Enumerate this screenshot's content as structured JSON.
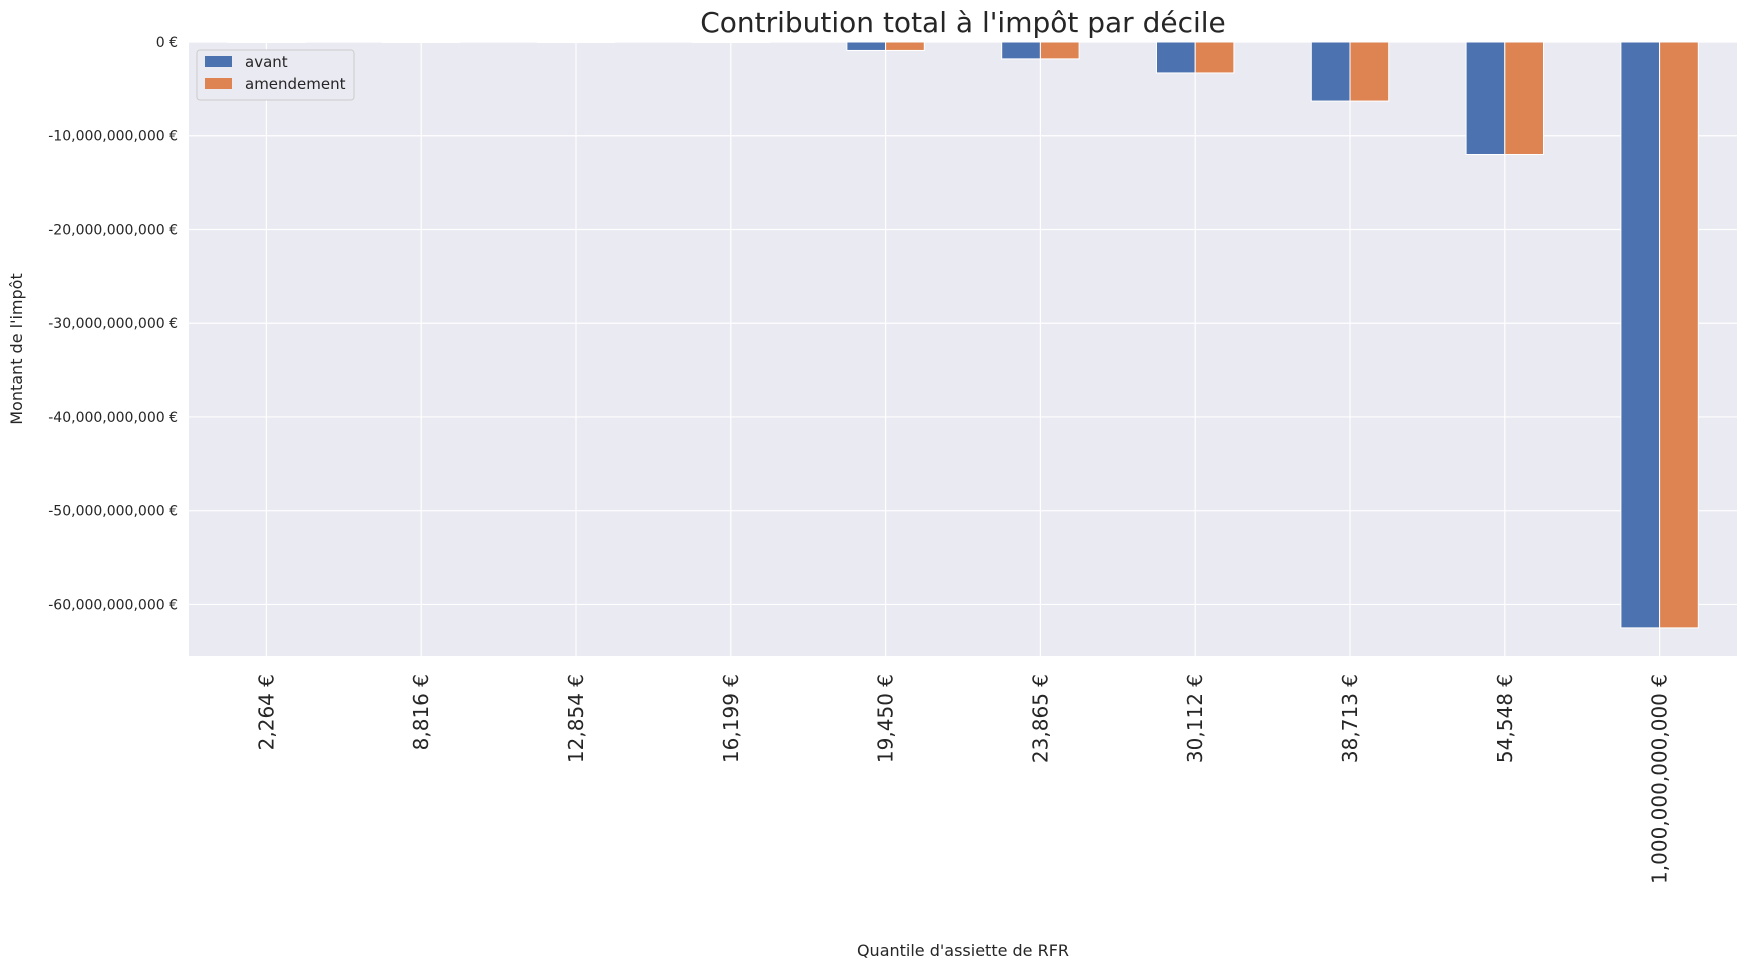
{
  "chart_data": {
    "type": "bar",
    "title": "Contribution total à l'impôt par décile",
    "xlabel": "Quantile d'assiette de RFR",
    "ylabel": "Montant de l'impôt",
    "categories": [
      "2,264 €",
      "8,816 €",
      "12,854 €",
      "16,199 €",
      "19,450 €",
      "23,865 €",
      "30,112 €",
      "38,713 €",
      "54,548 €",
      "1,000,000,000,000 €"
    ],
    "series": [
      {
        "name": "avant",
        "color": "#4c72b0",
        "values": [
          0,
          0,
          0,
          -50000000,
          -900000000,
          -1800000000,
          -3300000000,
          -6300000000,
          -12000000000,
          -62500000000
        ]
      },
      {
        "name": "amendement",
        "color": "#dd8452",
        "values": [
          0,
          0,
          0,
          -50000000,
          -900000000,
          -1800000000,
          -3300000000,
          -6300000000,
          -12000000000,
          -62500000000
        ]
      }
    ],
    "yticks": [
      0,
      -10000000000,
      -20000000000,
      -30000000000,
      -40000000000,
      -50000000000,
      -60000000000
    ],
    "ytick_labels": [
      "0 €",
      "-10,000,000,000 €",
      "-20,000,000,000 €",
      "-30,000,000,000 €",
      "-40,000,000,000 €",
      "-50,000,000,000 €",
      "-60,000,000,000 €"
    ],
    "ylim": [
      -65500000000,
      0
    ],
    "grid": true,
    "legend_position": "top-left",
    "background_color": "#eaeaf2",
    "grid_color": "#ffffff"
  }
}
